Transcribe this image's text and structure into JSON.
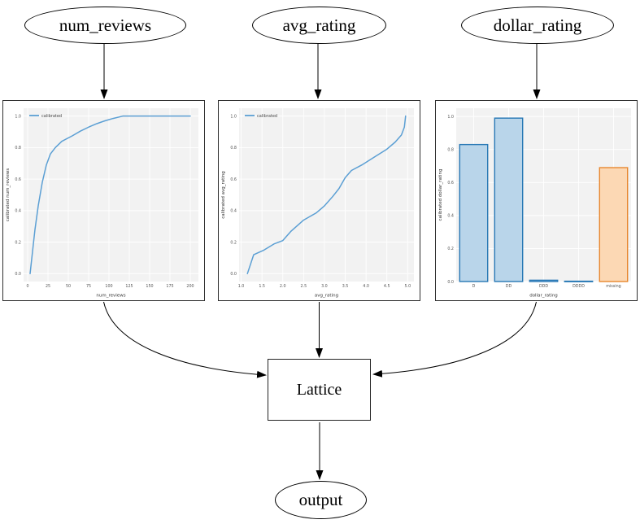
{
  "styles": {
    "background": "#ffffff",
    "node_border": "#000000",
    "edge_color": "#000000",
    "figure_border": "#2f2f2f",
    "plot_bg": "#f2f2f2",
    "grid_color": "#ffffff",
    "tick_color": "#555555",
    "axis_label_color": "#333333",
    "legend_text_color": "#444444",
    "line_blue": "#5b9fd4",
    "bar_blue_fill": "#b9d5ea",
    "bar_blue_edge": "#2878b5",
    "bar_orange_fill": "#fcd8b4",
    "bar_orange_edge": "#e8872e"
  },
  "diagram": {
    "nodes": {
      "num_reviews": {
        "label": "num_reviews",
        "shape": "ellipse"
      },
      "avg_rating": {
        "label": "avg_rating",
        "shape": "ellipse"
      },
      "dollar_rating": {
        "label": "dollar_rating",
        "shape": "ellipse"
      },
      "lattice": {
        "label": "Lattice",
        "shape": "box"
      },
      "output": {
        "label": "output",
        "shape": "ellipse"
      }
    },
    "edges": [
      {
        "from": "num_reviews",
        "to": "num_reviews_calibrator"
      },
      {
        "from": "avg_rating",
        "to": "avg_rating_calibrator"
      },
      {
        "from": "dollar_rating",
        "to": "dollar_rating_calibrator"
      },
      {
        "from": "num_reviews_calibrator",
        "to": "lattice"
      },
      {
        "from": "avg_rating_calibrator",
        "to": "lattice"
      },
      {
        "from": "dollar_rating_calibrator",
        "to": "lattice"
      },
      {
        "from": "lattice",
        "to": "output"
      }
    ]
  },
  "chart_data": [
    {
      "type": "line",
      "name": "num_reviews_calibration",
      "title": "",
      "xlabel": "num_reviews",
      "ylabel": "calibrated num_reviews",
      "legend": [
        "calibrated"
      ],
      "legend_position": "upper left",
      "grid": true,
      "xlim": [
        -5,
        210
      ],
      "ylim": [
        -0.05,
        1.05
      ],
      "xticks": [
        0,
        25,
        50,
        75,
        100,
        125,
        150,
        175,
        200
      ],
      "xtick_labels": [
        "0",
        "25",
        "50",
        "75",
        "100",
        "125",
        "150",
        "175",
        "200"
      ],
      "yticks": [
        0.0,
        0.2,
        0.4,
        0.6,
        0.8,
        1.0
      ],
      "ytick_labels": [
        "0.0",
        "0.2",
        "0.4",
        "0.6",
        "0.8",
        "1.0"
      ],
      "series": [
        {
          "name": "calibrated",
          "x": [
            3,
            6,
            9,
            13,
            18,
            23,
            28,
            34,
            42,
            55,
            65,
            75,
            85,
            95,
            105,
            117,
            200
          ],
          "y": [
            0.0,
            0.14,
            0.28,
            0.43,
            0.58,
            0.69,
            0.76,
            0.8,
            0.84,
            0.875,
            0.905,
            0.93,
            0.952,
            0.97,
            0.985,
            1.0,
            1.0
          ]
        }
      ]
    },
    {
      "type": "line",
      "name": "avg_rating_calibration",
      "title": "",
      "xlabel": "avg_rating",
      "ylabel": "calibrated avg_rating",
      "legend": [
        "calibrated"
      ],
      "legend_position": "upper left",
      "grid": true,
      "xlim": [
        0.95,
        5.15
      ],
      "ylim": [
        -0.05,
        1.05
      ],
      "xticks": [
        1.0,
        1.5,
        2.0,
        2.5,
        3.0,
        3.5,
        4.0,
        4.5,
        5.0
      ],
      "xtick_labels": [
        "1.0",
        "1.5",
        "2.0",
        "2.5",
        "3.0",
        "3.5",
        "4.0",
        "4.5",
        "5.0"
      ],
      "yticks": [
        0.0,
        0.2,
        0.4,
        0.6,
        0.8,
        1.0
      ],
      "ytick_labels": [
        "0.0",
        "0.2",
        "0.4",
        "0.6",
        "0.8",
        "1.0"
      ],
      "series": [
        {
          "name": "calibrated",
          "x": [
            1.15,
            1.3,
            1.55,
            1.8,
            2.0,
            2.2,
            2.5,
            2.8,
            3.0,
            3.2,
            3.35,
            3.5,
            3.65,
            3.9,
            4.2,
            4.5,
            4.7,
            4.85,
            4.92,
            4.95
          ],
          "y": [
            0.0,
            0.12,
            0.15,
            0.19,
            0.21,
            0.27,
            0.34,
            0.385,
            0.43,
            0.49,
            0.54,
            0.61,
            0.655,
            0.69,
            0.74,
            0.79,
            0.835,
            0.88,
            0.93,
            1.0
          ]
        }
      ]
    },
    {
      "type": "bar",
      "name": "dollar_rating_calibration",
      "title": "",
      "xlabel": "dollar_rating",
      "ylabel": "calibrated dollar_rating",
      "grid": true,
      "categories": [
        "D",
        "DD",
        "DDD",
        "DDDD",
        "missing"
      ],
      "values": [
        0.83,
        0.99,
        0.008,
        0.002,
        0.69
      ],
      "bar_color_keys": [
        "blue",
        "blue",
        "blue",
        "blue",
        "orange"
      ],
      "ylim": [
        0,
        1.05
      ],
      "yticks": [
        0.0,
        0.2,
        0.4,
        0.6,
        0.8,
        1.0
      ],
      "ytick_labels": [
        "0.0",
        "0.2",
        "0.4",
        "0.6",
        "0.8",
        "1.0"
      ]
    }
  ]
}
